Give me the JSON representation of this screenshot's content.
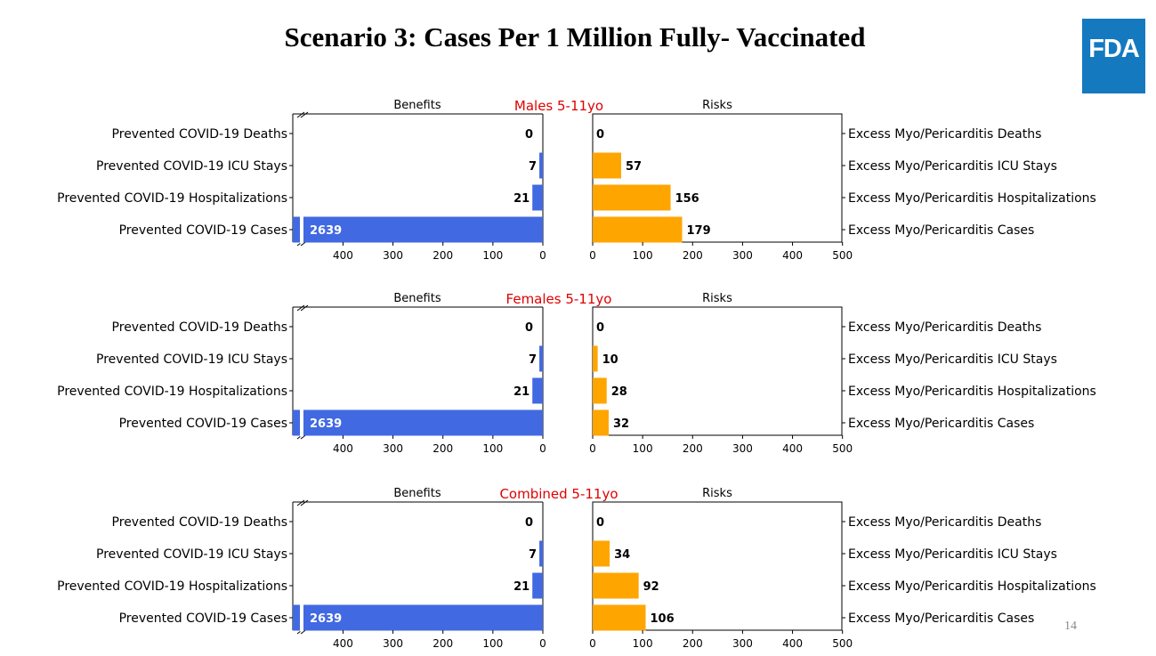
{
  "slide": {
    "title": "Scenario 3: Cases Per 1 Million Fully- Vaccinated",
    "logo_text": "FDA",
    "page_number": "14"
  },
  "colors": {
    "benefit_bar": "#4169E1",
    "risk_bar": "#FFA500",
    "panel_title": "#E00000",
    "logo_bg": "#1479BF"
  },
  "chart_data": [
    {
      "type": "bar",
      "orientation": "horizontal",
      "title": "Males 5-11yo",
      "left_panel_title": "Benefits",
      "right_panel_title": "Risks",
      "benefit_categories": [
        "Prevented COVID-19 Deaths",
        "Prevented COVID-19 ICU Stays",
        "Prevented COVID-19 Hospitalizations",
        "Prevented COVID-19 Cases"
      ],
      "risk_categories": [
        "Excess Myo/Pericarditis Deaths",
        "Excess Myo/Pericarditis ICU Stays",
        "Excess Myo/Pericarditis Hospitalizations",
        "Excess Myo/Pericarditis Cases"
      ],
      "benefits": [
        0,
        7,
        21,
        2639
      ],
      "risks": [
        0,
        57,
        156,
        179
      ],
      "benefit_xticks": [
        400,
        300,
        200,
        100,
        0
      ],
      "risk_xticks": [
        0,
        100,
        200,
        300,
        400,
        500
      ],
      "xlim": [
        0,
        500
      ],
      "axis_break": true
    },
    {
      "type": "bar",
      "orientation": "horizontal",
      "title": "Females 5-11yo",
      "left_panel_title": "Benefits",
      "right_panel_title": "Risks",
      "benefit_categories": [
        "Prevented COVID-19 Deaths",
        "Prevented COVID-19 ICU Stays",
        "Prevented COVID-19 Hospitalizations",
        "Prevented COVID-19 Cases"
      ],
      "risk_categories": [
        "Excess Myo/Pericarditis Deaths",
        "Excess Myo/Pericarditis ICU Stays",
        "Excess Myo/Pericarditis Hospitalizations",
        "Excess Myo/Pericarditis Cases"
      ],
      "benefits": [
        0,
        7,
        21,
        2639
      ],
      "risks": [
        0,
        10,
        28,
        32
      ],
      "benefit_xticks": [
        400,
        300,
        200,
        100,
        0
      ],
      "risk_xticks": [
        0,
        100,
        200,
        300,
        400,
        500
      ],
      "xlim": [
        0,
        500
      ],
      "axis_break": true
    },
    {
      "type": "bar",
      "orientation": "horizontal",
      "title": "Combined 5-11yo",
      "left_panel_title": "Benefits",
      "right_panel_title": "Risks",
      "benefit_categories": [
        "Prevented COVID-19 Deaths",
        "Prevented COVID-19 ICU Stays",
        "Prevented COVID-19 Hospitalizations",
        "Prevented COVID-19 Cases"
      ],
      "risk_categories": [
        "Excess Myo/Pericarditis Deaths",
        "Excess Myo/Pericarditis ICU Stays",
        "Excess Myo/Pericarditis Hospitalizations",
        "Excess Myo/Pericarditis Cases"
      ],
      "benefits": [
        0,
        7,
        21,
        2639
      ],
      "risks": [
        0,
        34,
        92,
        106
      ],
      "benefit_xticks": [
        400,
        300,
        200,
        100,
        0
      ],
      "risk_xticks": [
        0,
        100,
        200,
        300,
        400,
        500
      ],
      "xlim": [
        0,
        500
      ],
      "axis_break": true
    }
  ]
}
